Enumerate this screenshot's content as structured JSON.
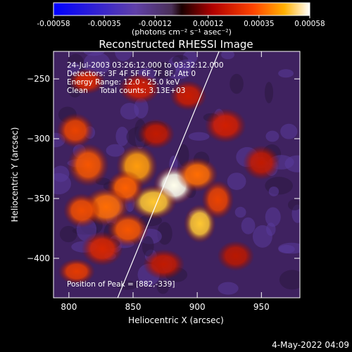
{
  "colorbar": {
    "tick_labels": [
      "-0.00058",
      "-0.00035",
      "-0.00012",
      "0.00012",
      "0.00035",
      "0.00058"
    ],
    "unit_label": "(photons cm⁻² s⁻¹ asec⁻²)",
    "range": [
      -0.00058,
      0.00058
    ]
  },
  "chart_data": {
    "type": "heatmap",
    "title": "Reconstructed RHESSI Image",
    "xlabel": "Heliocentric X (arcsec)",
    "ylabel": "Heliocentric Y (arcsec)",
    "xlim": [
      788,
      980
    ],
    "ylim": [
      -433,
      -227
    ],
    "x_ticks": [
      800,
      850,
      900,
      950
    ],
    "y_ticks": [
      -250,
      -300,
      -350,
      -400
    ],
    "annotations": [
      "24-Jul-2003 03:26:12.000 to 03:32:12.000",
      "Detectors: 3F 4F 5F 6F 7F 8F, Att 0",
      "Energy Range: 12.0 - 25.0 keV",
      "Clean     Total counts: 3.13E+03"
    ],
    "peak_label": "Position of Peak = [882,-339]",
    "peak": [
      882,
      -339
    ],
    "limb_line": {
      "start": [
        838,
        -433
      ],
      "end": [
        917,
        -227
      ]
    },
    "sources": [
      {
        "x": 882,
        "y": -339,
        "sx": 9,
        "sy": 9,
        "value": 0.00058
      },
      {
        "x": 866,
        "y": -353,
        "sx": 10,
        "sy": 8,
        "value": 0.00048
      },
      {
        "x": 853,
        "y": -323,
        "sx": 9,
        "sy": 10,
        "value": 0.00042
      },
      {
        "x": 844,
        "y": -341,
        "sx": 8,
        "sy": 8,
        "value": 0.00034
      },
      {
        "x": 829,
        "y": -357,
        "sx": 10,
        "sy": 9,
        "value": 0.00036
      },
      {
        "x": 810,
        "y": -360,
        "sx": 8,
        "sy": 8,
        "value": 0.0003
      },
      {
        "x": 846,
        "y": -376,
        "sx": 9,
        "sy": 8,
        "value": 0.00032
      },
      {
        "x": 900,
        "y": -330,
        "sx": 9,
        "sy": 8,
        "value": 0.00036
      },
      {
        "x": 902,
        "y": -371,
        "sx": 7,
        "sy": 9,
        "value": 0.00048
      },
      {
        "x": 916,
        "y": -351,
        "sx": 7,
        "sy": 9,
        "value": 0.00028
      },
      {
        "x": 815,
        "y": -322,
        "sx": 9,
        "sy": 10,
        "value": 0.00032
      },
      {
        "x": 805,
        "y": -293,
        "sx": 8,
        "sy": 8,
        "value": 0.00028
      },
      {
        "x": 814,
        "y": -252,
        "sx": 8,
        "sy": 6,
        "value": 0.00022
      },
      {
        "x": 855,
        "y": -258,
        "sx": 9,
        "sy": 7,
        "value": 0.0002
      },
      {
        "x": 893,
        "y": -264,
        "sx": 8,
        "sy": 7,
        "value": 0.00018
      },
      {
        "x": 922,
        "y": -289,
        "sx": 9,
        "sy": 8,
        "value": 0.0002
      },
      {
        "x": 950,
        "y": -320,
        "sx": 8,
        "sy": 8,
        "value": 0.00016
      },
      {
        "x": 826,
        "y": -392,
        "sx": 9,
        "sy": 8,
        "value": 0.00022
      },
      {
        "x": 806,
        "y": -411,
        "sx": 8,
        "sy": 6,
        "value": 0.00026
      },
      {
        "x": 874,
        "y": -405,
        "sx": 9,
        "sy": 7,
        "value": 0.00016
      },
      {
        "x": 930,
        "y": -398,
        "sx": 8,
        "sy": 7,
        "value": 0.00014
      },
      {
        "x": 868,
        "y": -296,
        "sx": 8,
        "sy": 7,
        "value": 0.00016
      }
    ]
  },
  "footer": {
    "timestamp": "4-May-2022 04:09"
  }
}
